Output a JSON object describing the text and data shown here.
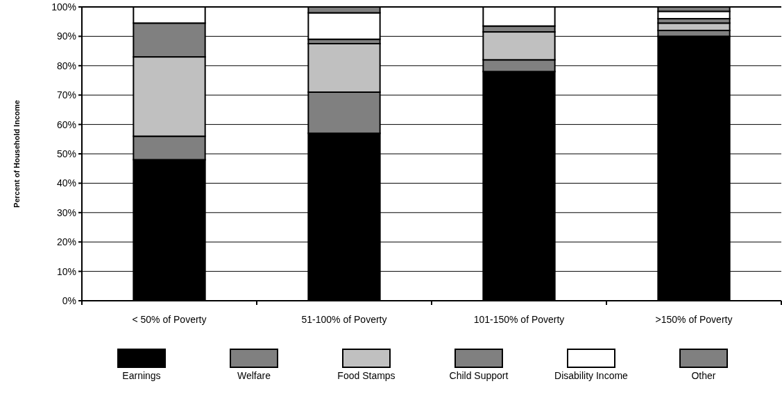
{
  "chart_data": {
    "type": "bar",
    "stacked": true,
    "ylabel": "Percent of Household Income",
    "categories": [
      "< 50% of Poverty",
      "51-100% of Poverty",
      "101-150% of Poverty",
      ">150% of Poverty"
    ],
    "series": [
      {
        "name": "Earnings",
        "color": "#000000",
        "values": [
          48,
          57,
          78,
          90
        ]
      },
      {
        "name": "Welfare",
        "color": "#808080",
        "values": [
          8,
          14,
          4,
          2
        ]
      },
      {
        "name": "Food Stamps",
        "color": "#c0c0c0",
        "values": [
          27,
          16.5,
          9.5,
          2.5
        ]
      },
      {
        "name": "Child Support",
        "color": "#808080",
        "values": [
          11.5,
          1.5,
          2,
          1.5
        ]
      },
      {
        "name": "Disability  Income",
        "color": "#ffffff",
        "values": [
          5.5,
          9,
          6.5,
          2.5
        ]
      },
      {
        "name": "Other",
        "color": "#808080",
        "values": [
          0,
          2,
          0,
          1.5
        ]
      }
    ],
    "ylim": [
      0,
      100
    ],
    "yticks": [
      {
        "value": 0,
        "label": "0%"
      },
      {
        "value": 10,
        "label": "10%"
      },
      {
        "value": 20,
        "label": "20%"
      },
      {
        "value": 30,
        "label": "30%"
      },
      {
        "value": 40,
        "label": "40%"
      },
      {
        "value": 50,
        "label": "50%"
      },
      {
        "value": 60,
        "label": "60%"
      },
      {
        "value": 70,
        "label": "70%"
      },
      {
        "value": 80,
        "label": "80%"
      },
      {
        "value": 90,
        "label": "90%"
      },
      {
        "value": 100,
        "label": "100%"
      }
    ],
    "grid": "y",
    "legend": "bottom"
  }
}
